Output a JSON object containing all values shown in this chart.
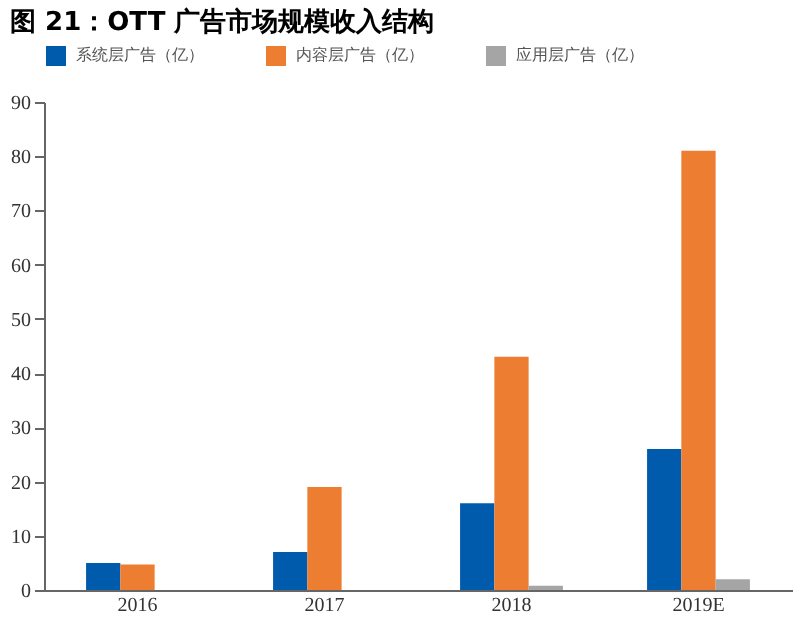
{
  "chart_data": {
    "type": "bar",
    "title": "图 21：OTT 广告市场规模收入结构",
    "categories": [
      "2016",
      "2017",
      "2018",
      "2019E"
    ],
    "series": [
      {
        "name": "系统层广告（亿）",
        "color": "#005bac",
        "values": [
          5,
          7,
          16,
          26
        ]
      },
      {
        "name": "内容层广告（亿）",
        "color": "#ed7d31",
        "values": [
          4.7,
          19,
          43,
          81
        ]
      },
      {
        "name": "应用层广告（亿）",
        "color": "#a5a5a5",
        "values": [
          0,
          0,
          0.8,
          2
        ]
      }
    ],
    "ylim": [
      0,
      90
    ],
    "yticks": [
      0,
      10,
      20,
      30,
      40,
      50,
      60,
      70,
      80,
      90
    ],
    "grid": false,
    "legend": "top"
  }
}
